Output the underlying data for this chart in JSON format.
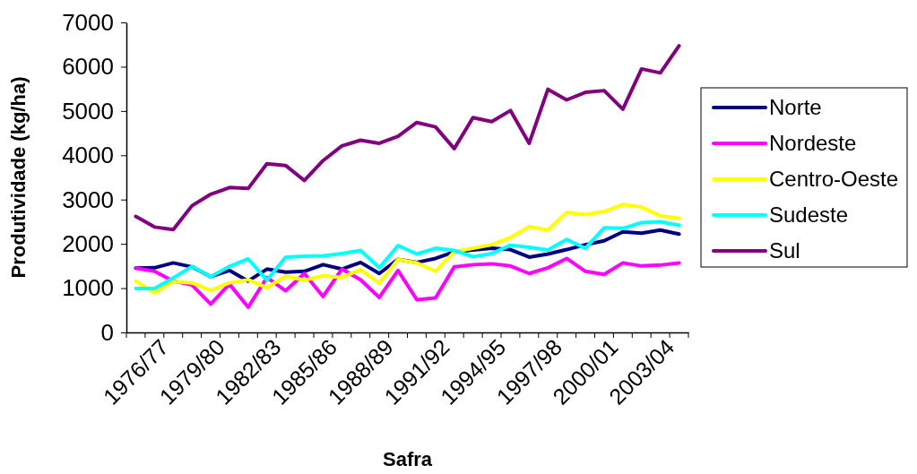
{
  "chart_data": {
    "type": "line",
    "xlabel": "Safra",
    "ylabel": "Produtividade (kg/ha)",
    "categories": [
      "1976/77",
      null,
      null,
      "1979/80",
      null,
      null,
      "1982/83",
      null,
      null,
      "1985/86",
      null,
      null,
      "1988/89",
      null,
      null,
      "1991/92",
      null,
      null,
      "1994/95",
      null,
      null,
      "1997/98",
      null,
      null,
      "2000/01",
      null,
      null,
      "2003/04",
      null,
      null
    ],
    "series": [
      {
        "name": "Norte",
        "color": "#000080",
        "values": [
          1450,
          1460,
          1570,
          1480,
          1260,
          1400,
          1160,
          1430,
          1360,
          1380,
          1530,
          1430,
          1580,
          1330,
          1650,
          1580,
          1670,
          1820,
          1860,
          1900,
          1870,
          1700,
          1770,
          1870,
          1980,
          2070,
          2270,
          2240,
          2310,
          2220
        ]
      },
      {
        "name": "Nordeste",
        "color": "#ff00ff",
        "values": [
          1450,
          1380,
          1160,
          1070,
          640,
          1090,
          570,
          1240,
          940,
          1330,
          810,
          1430,
          1190,
          790,
          1400,
          740,
          780,
          1480,
          1530,
          1550,
          1500,
          1330,
          1460,
          1670,
          1380,
          1310,
          1570,
          1500,
          1520,
          1570
        ]
      },
      {
        "name": "Centro-Oeste",
        "color": "#ffff00",
        "values": [
          1160,
          890,
          1150,
          1120,
          950,
          1120,
          1190,
          1010,
          1270,
          1180,
          1280,
          1240,
          1420,
          1110,
          1650,
          1570,
          1380,
          1820,
          1900,
          1980,
          2140,
          2390,
          2310,
          2710,
          2660,
          2730,
          2890,
          2830,
          2630,
          2580
        ]
      },
      {
        "name": "Sudeste",
        "color": "#00ffff",
        "values": [
          990,
          990,
          1230,
          1490,
          1260,
          1490,
          1660,
          1180,
          1700,
          1720,
          1730,
          1780,
          1850,
          1460,
          1960,
          1770,
          1900,
          1850,
          1710,
          1780,
          1970,
          1920,
          1860,
          2100,
          1900,
          2360,
          2350,
          2480,
          2500,
          2420
        ]
      },
      {
        "name": "Sul",
        "color": "#800080",
        "values": [
          2620,
          2380,
          2320,
          2860,
          3120,
          3270,
          3250,
          3810,
          3770,
          3430,
          3880,
          4210,
          4340,
          4270,
          4430,
          4740,
          4640,
          4150,
          4850,
          4760,
          5010,
          4270,
          5490,
          5250,
          5420,
          5460,
          5040,
          5950,
          5860,
          6470
        ]
      }
    ],
    "ylim": [
      0,
      7000
    ],
    "yticks": [
      0,
      1000,
      2000,
      3000,
      4000,
      5000,
      6000,
      7000
    ],
    "legend": "right"
  }
}
